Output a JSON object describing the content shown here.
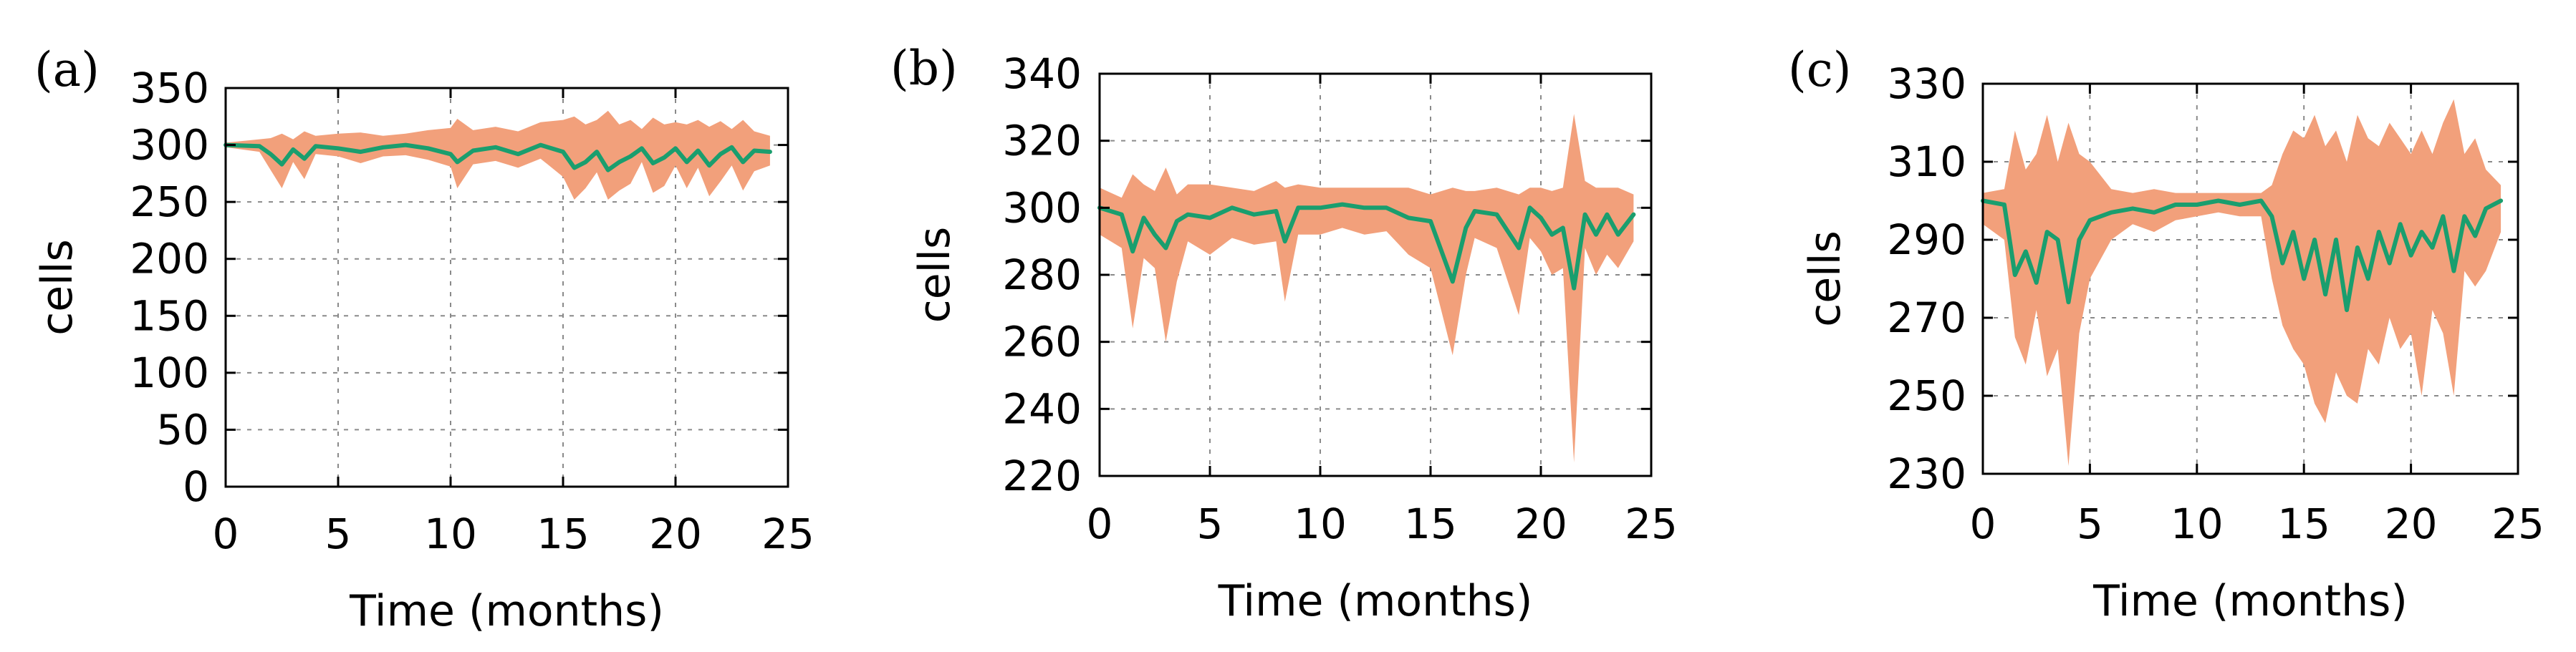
{
  "chart_data": [
    {
      "type": "line",
      "panel_label": "(a)",
      "xlabel": "Time (months)",
      "ylabel": "cells",
      "xlim": [
        0,
        25
      ],
      "ylim": [
        0,
        350
      ],
      "xticks": [
        0,
        5,
        10,
        15,
        20,
        25
      ],
      "yticks": [
        0,
        50,
        100,
        150,
        200,
        250,
        300,
        350
      ],
      "grid": true,
      "x_extent": [
        0,
        24.2
      ],
      "series": [
        {
          "kind": "band",
          "color": "#f2a07b",
          "x": [
            0,
            1.5,
            2.0,
            2.5,
            3.0,
            3.5,
            4.0,
            5.0,
            6.0,
            7.0,
            8.0,
            9.0,
            10.0,
            10.3,
            11.0,
            12.0,
            13.0,
            14.0,
            15.0,
            15.5,
            16.0,
            16.5,
            17.0,
            17.5,
            18.0,
            18.5,
            19.0,
            19.5,
            20.0,
            20.5,
            21.0,
            21.5,
            22.0,
            22.5,
            23.0,
            23.5,
            24.2
          ],
          "lower": [
            298,
            294,
            278,
            262,
            285,
            270,
            292,
            290,
            284,
            290,
            291,
            287,
            281,
            262,
            283,
            286,
            280,
            288,
            272,
            252,
            262,
            276,
            252,
            260,
            266,
            285,
            258,
            264,
            282,
            262,
            280,
            255,
            268,
            282,
            260,
            277,
            282
          ],
          "upper": [
            302,
            305,
            306,
            310,
            305,
            312,
            308,
            310,
            311,
            308,
            310,
            313,
            315,
            323,
            313,
            316,
            312,
            320,
            322,
            325,
            318,
            322,
            330,
            318,
            322,
            314,
            324,
            318,
            320,
            318,
            322,
            316,
            321,
            314,
            322,
            312,
            308
          ]
        },
        {
          "kind": "mean",
          "color": "#1a9e6e",
          "x": [
            0,
            1.5,
            2.0,
            2.5,
            3.0,
            3.5,
            4.0,
            5.0,
            6.0,
            7.0,
            8.0,
            9.0,
            10.0,
            10.3,
            11.0,
            12.0,
            13.0,
            14.0,
            15.0,
            15.5,
            16.0,
            16.5,
            17.0,
            17.5,
            18.0,
            18.5,
            19.0,
            19.5,
            20.0,
            20.5,
            21.0,
            21.5,
            22.0,
            22.5,
            23.0,
            23.5,
            24.2
          ],
          "values": [
            300,
            299,
            292,
            283,
            296,
            288,
            299,
            297,
            294,
            298,
            300,
            297,
            292,
            285,
            295,
            298,
            292,
            300,
            294,
            280,
            285,
            294,
            278,
            285,
            290,
            297,
            284,
            289,
            297,
            285,
            295,
            282,
            292,
            298,
            285,
            295,
            294
          ]
        }
      ]
    },
    {
      "type": "line",
      "panel_label": "(b)",
      "xlabel": "Time (months)",
      "ylabel": "cells",
      "xlim": [
        0,
        25
      ],
      "ylim": [
        220,
        340
      ],
      "xticks": [
        0,
        5,
        10,
        15,
        20,
        25
      ],
      "yticks": [
        220,
        240,
        260,
        280,
        300,
        320,
        340
      ],
      "grid": true,
      "x_extent": [
        0,
        24.2
      ],
      "series": [
        {
          "kind": "band",
          "color": "#f2a07b",
          "x": [
            0,
            1.0,
            1.5,
            2.0,
            2.5,
            3.0,
            3.5,
            4.0,
            5.0,
            6.0,
            7.0,
            8.0,
            8.4,
            9.0,
            10.0,
            11.0,
            12.0,
            13.0,
            14.0,
            15.0,
            16.0,
            16.6,
            17.0,
            18.0,
            19.0,
            19.5,
            20.0,
            20.5,
            21.0,
            21.5,
            22.0,
            22.5,
            23.0,
            23.5,
            24.2
          ],
          "lower": [
            292,
            288,
            264,
            285,
            282,
            260,
            278,
            290,
            286,
            291,
            289,
            290,
            272,
            292,
            292,
            294,
            292,
            293,
            286,
            282,
            256,
            280,
            291,
            288,
            268,
            291,
            287,
            280,
            282,
            224,
            288,
            280,
            286,
            282,
            290
          ],
          "upper": [
            306,
            303,
            310,
            307,
            305,
            312,
            304,
            307,
            307,
            306,
            305,
            308,
            306,
            307,
            306,
            306,
            306,
            306,
            306,
            304,
            306,
            305,
            305,
            306,
            304,
            306,
            306,
            305,
            306,
            328,
            308,
            306,
            306,
            306,
            304
          ]
        },
        {
          "kind": "mean",
          "color": "#1a9e6e",
          "x": [
            0,
            1.0,
            1.5,
            2.0,
            2.5,
            3.0,
            3.5,
            4.0,
            5.0,
            6.0,
            7.0,
            8.0,
            8.4,
            9.0,
            10.0,
            11.0,
            12.0,
            13.0,
            14.0,
            15.0,
            16.0,
            16.6,
            17.0,
            18.0,
            19.0,
            19.5,
            20.0,
            20.5,
            21.0,
            21.5,
            22.0,
            22.5,
            23.0,
            23.5,
            24.2
          ],
          "values": [
            300,
            298,
            287,
            297,
            292,
            288,
            296,
            298,
            297,
            300,
            298,
            299,
            290,
            300,
            300,
            301,
            300,
            300,
            297,
            296,
            278,
            294,
            299,
            298,
            288,
            300,
            297,
            292,
            294,
            276,
            298,
            292,
            298,
            292,
            298
          ]
        }
      ]
    },
    {
      "type": "line",
      "panel_label": "(c)",
      "xlabel": "Time (months)",
      "ylabel": "cells",
      "xlim": [
        0,
        25
      ],
      "ylim": [
        230,
        330
      ],
      "xticks": [
        0,
        5,
        10,
        15,
        20,
        25
      ],
      "yticks": [
        230,
        250,
        270,
        290,
        310,
        330
      ],
      "grid": true,
      "x_extent": [
        0,
        24.2
      ],
      "series": [
        {
          "kind": "band",
          "color": "#f2a07b",
          "x": [
            0,
            1.0,
            1.5,
            2.0,
            2.5,
            3.0,
            3.5,
            4.0,
            4.5,
            5.0,
            6.0,
            7.0,
            8.0,
            9.0,
            10.0,
            11.0,
            12.0,
            13.0,
            13.5,
            14.0,
            14.5,
            15.0,
            15.5,
            16.0,
            16.5,
            17.0,
            17.5,
            18.0,
            18.5,
            19.0,
            19.5,
            20.0,
            20.5,
            21.0,
            21.5,
            22.0,
            22.5,
            23.0,
            23.5,
            24.2
          ],
          "lower": [
            294,
            290,
            265,
            258,
            272,
            255,
            262,
            232,
            266,
            280,
            290,
            294,
            292,
            295,
            296,
            297,
            296,
            296,
            280,
            268,
            262,
            258,
            248,
            243,
            256,
            250,
            248,
            262,
            258,
            270,
            262,
            266,
            250,
            272,
            266,
            250,
            282,
            278,
            282,
            292
          ],
          "upper": [
            302,
            303,
            318,
            308,
            312,
            322,
            310,
            320,
            312,
            310,
            303,
            302,
            303,
            302,
            302,
            302,
            302,
            302,
            304,
            312,
            318,
            316,
            322,
            314,
            318,
            310,
            322,
            316,
            314,
            320,
            316,
            312,
            318,
            312,
            320,
            326,
            312,
            316,
            308,
            304
          ]
        },
        {
          "kind": "mean",
          "color": "#1a9e6e",
          "x": [
            0,
            1.0,
            1.5,
            2.0,
            2.5,
            3.0,
            3.5,
            4.0,
            4.5,
            5.0,
            6.0,
            7.0,
            8.0,
            9.0,
            10.0,
            11.0,
            12.0,
            13.0,
            13.5,
            14.0,
            14.5,
            15.0,
            15.5,
            16.0,
            16.5,
            17.0,
            17.5,
            18.0,
            18.5,
            19.0,
            19.5,
            20.0,
            20.5,
            21.0,
            21.5,
            22.0,
            22.5,
            23.0,
            23.5,
            24.2
          ],
          "values": [
            300,
            299,
            281,
            287,
            279,
            292,
            290,
            274,
            290,
            295,
            297,
            298,
            297,
            299,
            299,
            300,
            299,
            300,
            296,
            284,
            292,
            280,
            290,
            276,
            290,
            272,
            288,
            280,
            292,
            284,
            294,
            286,
            292,
            288,
            296,
            282,
            296,
            291,
            298,
            300
          ]
        }
      ]
    }
  ]
}
